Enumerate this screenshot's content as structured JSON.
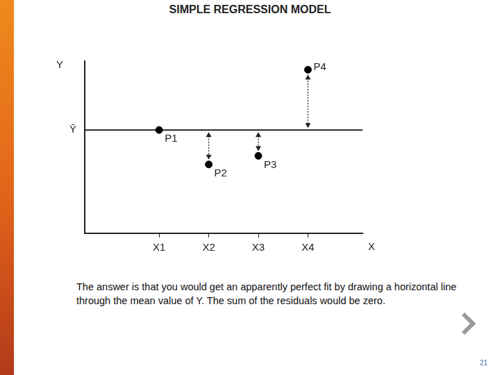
{
  "chart_data": {
    "type": "scatter",
    "title": "SIMPLE REGRESSION MODEL",
    "x_label": "X",
    "y_label": "Y",
    "x": [
      1.5,
      2.5,
      3.5,
      4.5
    ],
    "values": [
      6,
      4,
      4.5,
      9.5
    ],
    "point_labels": [
      "P1",
      "P2",
      "P3",
      "P4"
    ],
    "mean": 6,
    "xlim": [
      0,
      5.6
    ],
    "xticks": [
      {
        "value": 1.5,
        "label": "X1"
      },
      {
        "value": 2.5,
        "label": "X2"
      },
      {
        "value": 3.5,
        "label": "X3"
      },
      {
        "value": 4.5,
        "label": "X4"
      }
    ],
    "ylim": [
      0,
      10
    ],
    "yticks": [
      {
        "value": 6,
        "label": "Ȳ"
      }
    ],
    "color": "#000000",
    "marker": "circle",
    "grid": false
  },
  "slide": {
    "caption": "The answer is that you would get an apparently perfect fit by drawing a horizontal line through the mean value of Y.  The sum of the residuals would be zero.",
    "page_number": 21
  }
}
